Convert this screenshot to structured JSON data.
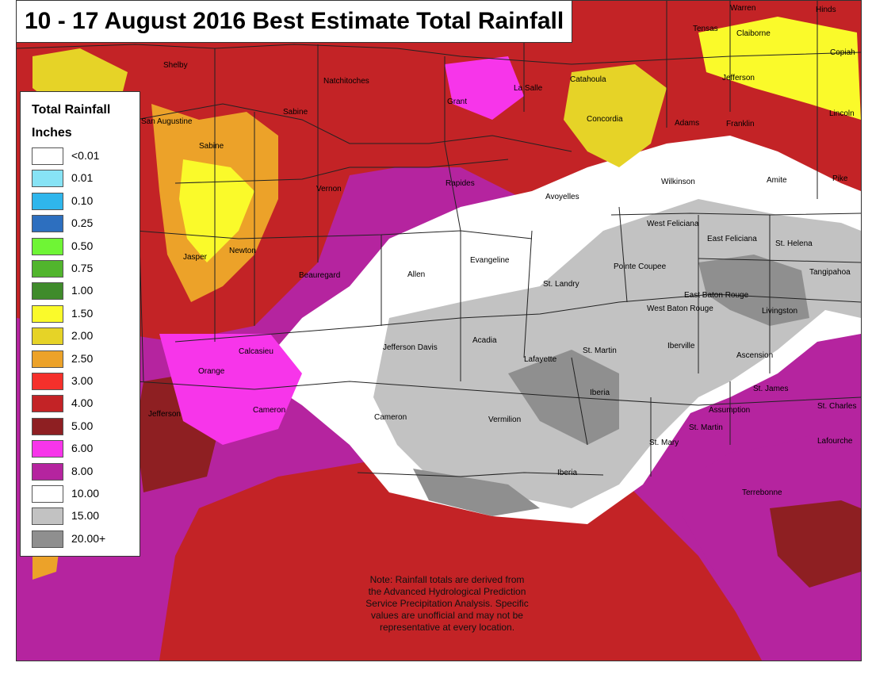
{
  "title": "10 - 17 August 2016 Best Estimate Total Rainfall",
  "legend": {
    "title": "Total Rainfall",
    "units": "Inches",
    "entries": [
      {
        "label": "<0.01",
        "color": "#ffffff"
      },
      {
        "label": "0.01",
        "color": "#87e3f5"
      },
      {
        "label": "0.10",
        "color": "#2fb6ec"
      },
      {
        "label": "0.25",
        "color": "#2d6fbf"
      },
      {
        "label": "0.50",
        "color": "#6ff535"
      },
      {
        "label": "0.75",
        "color": "#51b52d"
      },
      {
        "label": "1.00",
        "color": "#3f8b2b"
      },
      {
        "label": "1.50",
        "color": "#fafa2a"
      },
      {
        "label": "2.00",
        "color": "#e6d327"
      },
      {
        "label": "2.50",
        "color": "#eca229"
      },
      {
        "label": "3.00",
        "color": "#f5302b"
      },
      {
        "label": "4.00",
        "color": "#c32326"
      },
      {
        "label": "5.00",
        "color": "#8e1f22"
      },
      {
        "label": "6.00",
        "color": "#f735ea"
      },
      {
        "label": "8.00",
        "color": "#b5249f"
      },
      {
        "label": "10.00",
        "color": "#ffffff"
      },
      {
        "label": "15.00",
        "color": "#c2c2c2"
      },
      {
        "label": "20.00+",
        "color": "#8f8f8f"
      }
    ]
  },
  "note": [
    "Note: Rainfall totals are derived from",
    "the Advanced Hydrological Prediction",
    "Service Precipitation Analysis. Specific",
    "values are unofficial and may not be",
    "representative at every location."
  ],
  "places": [
    {
      "name": "Warren"
    },
    {
      "name": "Hinds"
    },
    {
      "name": "Tensas"
    },
    {
      "name": "Claiborne"
    },
    {
      "name": "Copiah"
    },
    {
      "name": "Shelby"
    },
    {
      "name": "Natchitoches"
    },
    {
      "name": "La Salle"
    },
    {
      "name": "Catahoula"
    },
    {
      "name": "Jefferson"
    },
    {
      "name": "Grant"
    },
    {
      "name": "Lincoln"
    },
    {
      "name": "San Augustine"
    },
    {
      "name": "Sabine"
    },
    {
      "name": "Concordia"
    },
    {
      "name": "Adams"
    },
    {
      "name": "Franklin"
    },
    {
      "name": "Sabine"
    },
    {
      "name": "Vernon"
    },
    {
      "name": "Rapides"
    },
    {
      "name": "Avoyelles"
    },
    {
      "name": "Wilkinson"
    },
    {
      "name": "Amite"
    },
    {
      "name": "Pike"
    },
    {
      "name": "West Feliciana"
    },
    {
      "name": "East Feliciana"
    },
    {
      "name": "St. Helena"
    },
    {
      "name": "Jasper"
    },
    {
      "name": "Newton"
    },
    {
      "name": "Evangeline"
    },
    {
      "name": "Pointe Coupee"
    },
    {
      "name": "Tangipahoa"
    },
    {
      "name": "Beauregard"
    },
    {
      "name": "Allen"
    },
    {
      "name": "St. Landry"
    },
    {
      "name": "East Baton Rouge"
    },
    {
      "name": "West Baton Rouge"
    },
    {
      "name": "Livingston"
    },
    {
      "name": "Acadia"
    },
    {
      "name": "Calcasieu"
    },
    {
      "name": "Jefferson Davis"
    },
    {
      "name": "Iberville"
    },
    {
      "name": "St. Martin"
    },
    {
      "name": "Ascension"
    },
    {
      "name": "Lafayette"
    },
    {
      "name": "Orange"
    },
    {
      "name": "St. James"
    },
    {
      "name": "Iberia"
    },
    {
      "name": "Jefferson"
    },
    {
      "name": "Cameron"
    },
    {
      "name": "Cameron"
    },
    {
      "name": "Assumption"
    },
    {
      "name": "St. Charles"
    },
    {
      "name": "Vermilion"
    },
    {
      "name": "St. Martin"
    },
    {
      "name": "Lafourche"
    },
    {
      "name": "St. Mary"
    },
    {
      "name": "Iberia"
    },
    {
      "name": "Terrebonne"
    }
  ]
}
